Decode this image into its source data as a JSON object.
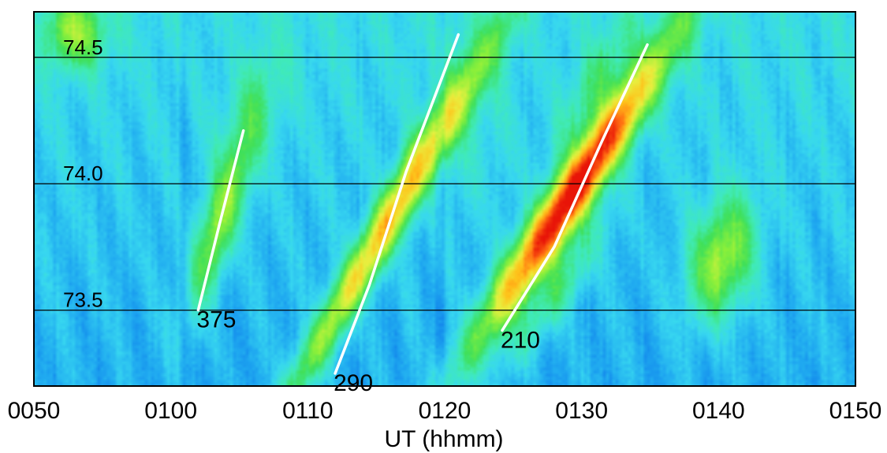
{
  "chart_data": {
    "type": "heatmap",
    "xlabel": "UT (hhmm)",
    "x_tick_labels": [
      "0050",
      "0100",
      "0110",
      "0120",
      "0130",
      "0140",
      "0150"
    ],
    "x_ticks_minutes": [
      50,
      60,
      70,
      80,
      90,
      100,
      110
    ],
    "xlim": [
      50,
      110
    ],
    "ylim": [
      73.2,
      74.68
    ],
    "reference_lines": [
      {
        "value": 74.5,
        "label": "74.5"
      },
      {
        "value": 74.0,
        "label": "74.0"
      },
      {
        "value": 73.5,
        "label": "73.5"
      }
    ],
    "colormap": [
      "#0033dd",
      "#0a6ee8",
      "#1ea6f0",
      "#38d8f0",
      "#40ebb8",
      "#3fe05a",
      "#8cf03a",
      "#e8f040",
      "#ffc21a",
      "#ff6a12",
      "#e81408"
    ],
    "background_level": 0.22,
    "features": [
      {
        "t": 53,
        "y": 74.6,
        "st": 1.6,
        "sy": 0.1,
        "amp": 0.3,
        "tilt": 0
      },
      {
        "t": 63.6,
        "y": 73.85,
        "st": 1.0,
        "sy": 0.25,
        "amp": 0.35,
        "tilt": 5.2
      },
      {
        "t": 66.0,
        "y": 74.3,
        "st": 1.6,
        "sy": 0.18,
        "amp": 0.12,
        "tilt": 5.0
      },
      {
        "t": 75.5,
        "y": 73.8,
        "st": 1.0,
        "sy": 0.55,
        "amp": 0.48,
        "tilt": 10.5
      },
      {
        "t": 77.0,
        "y": 74.05,
        "st": 0.8,
        "sy": 0.3,
        "amp": 0.12,
        "tilt": 10.0
      },
      {
        "t": 89.2,
        "y": 73.95,
        "st": 1.3,
        "sy": 0.42,
        "amp": 0.78,
        "tilt": 11.5
      },
      {
        "t": 91.0,
        "y": 74.4,
        "st": 1.2,
        "sy": 0.2,
        "amp": 0.15,
        "tilt": 9.0
      },
      {
        "t": 88.0,
        "y": 73.55,
        "st": 1.1,
        "sy": 0.2,
        "amp": 0.2,
        "tilt": 11.0
      },
      {
        "t": 100.2,
        "y": 73.7,
        "st": 1.6,
        "sy": 0.17,
        "amp": 0.38,
        "tilt": 3.0
      },
      {
        "t": 81.5,
        "y": 74.3,
        "st": 2.0,
        "sy": 0.3,
        "amp": 0.08,
        "tilt": 0
      }
    ],
    "tracks": [
      {
        "label": "375",
        "points": [
          [
            62.0,
            73.5
          ],
          [
            63.6,
            73.85
          ],
          [
            65.3,
            74.21
          ]
        ]
      },
      {
        "label": "290",
        "points": [
          [
            72.0,
            73.25
          ],
          [
            74.5,
            73.6
          ],
          [
            77.2,
            74.05
          ],
          [
            81.0,
            74.59
          ]
        ]
      },
      {
        "label": "210",
        "points": [
          [
            84.2,
            73.42
          ],
          [
            88.0,
            73.75
          ],
          [
            91.5,
            74.17
          ],
          [
            94.8,
            74.55
          ]
        ]
      }
    ]
  }
}
